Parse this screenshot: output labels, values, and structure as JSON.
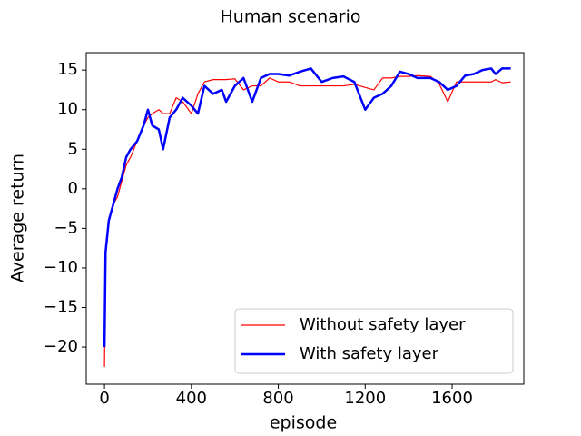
{
  "chart_data": {
    "type": "line",
    "title": "Human scenario",
    "x_label": "episode",
    "y_label": "Average return",
    "x": [
      0,
      5,
      20,
      40,
      60,
      80,
      100,
      120,
      150,
      180,
      200,
      220,
      250,
      270,
      300,
      330,
      360,
      400,
      430,
      460,
      500,
      540,
      560,
      600,
      640,
      680,
      720,
      760,
      800,
      850,
      900,
      950,
      1000,
      1050,
      1100,
      1150,
      1200,
      1240,
      1280,
      1320,
      1360,
      1400,
      1440,
      1500,
      1540,
      1580,
      1620,
      1660,
      1700,
      1740,
      1780,
      1800,
      1830,
      1870
    ],
    "series": [
      {
        "name": "Without safety layer",
        "color": "#ff0000",
        "width": 1.2,
        "values": [
          -22.5,
          -8,
          -4,
          -2,
          -1,
          1,
          3,
          4,
          6,
          8,
          9,
          9.5,
          10,
          9.5,
          9.5,
          11.5,
          11,
          9.5,
          12,
          13.5,
          13.8,
          13.8,
          13.8,
          13.9,
          12.5,
          13,
          13,
          14,
          13.5,
          13.5,
          13,
          13,
          13,
          13,
          13,
          13.2,
          12.8,
          12.5,
          14,
          14,
          14.2,
          14.2,
          14.3,
          14.2,
          13.3,
          11,
          13.5,
          13.5,
          13.5,
          13.5,
          13.5,
          13.8,
          13.4,
          13.5
        ]
      },
      {
        "name": "With safety layer",
        "color": "#0000ff",
        "width": 2.5,
        "values": [
          -20,
          -8,
          -4,
          -2,
          0,
          1.5,
          4,
          5,
          6,
          8,
          10,
          8,
          7.5,
          5,
          9,
          10,
          11.5,
          10.5,
          9.5,
          13,
          12,
          12.5,
          11,
          13,
          14,
          11,
          14,
          14.5,
          14.5,
          14.3,
          14.8,
          15.2,
          13.5,
          14,
          14.2,
          13.5,
          10,
          11.5,
          12,
          13,
          14.8,
          14.5,
          14,
          14,
          13.5,
          12.5,
          13,
          14.3,
          14.5,
          15,
          15.2,
          14.5,
          15.2,
          15.2
        ]
      }
    ],
    "xlim": [
      -84,
      1930
    ],
    "ylim": [
      -24.7,
      17.2
    ],
    "xticks": [
      0,
      400,
      800,
      1200,
      1600
    ],
    "yticks": [
      {
        "value": -20,
        "label": "−20"
      },
      {
        "value": -15,
        "label": "−15"
      },
      {
        "value": -10,
        "label": "−10"
      },
      {
        "value": -5,
        "label": "−5"
      },
      0,
      5,
      10,
      15
    ],
    "legend": "lower right"
  }
}
